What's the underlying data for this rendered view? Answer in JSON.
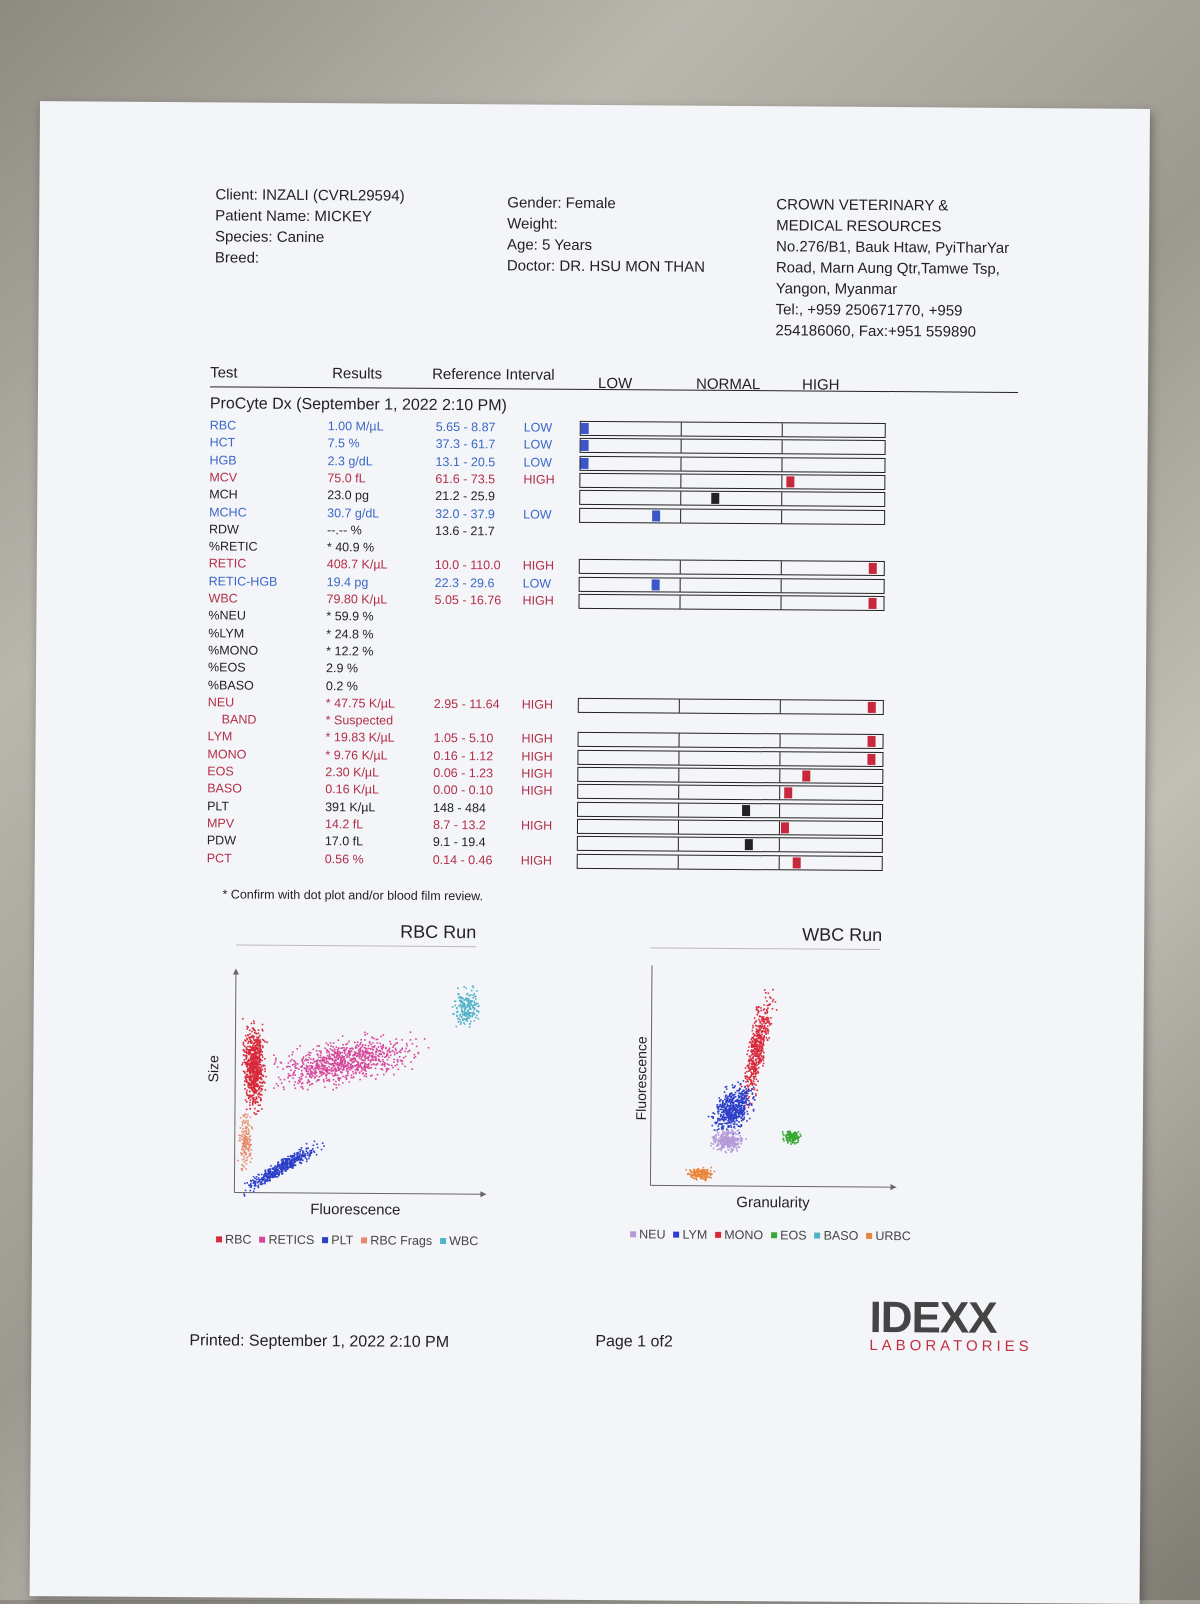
{
  "header": {
    "client": "Client: INZALI (CVRL29594)",
    "patient": "Patient Name: MICKEY",
    "species": "Species: Canine",
    "breed": "Breed:",
    "gender": "Gender: Female",
    "weight": "Weight:",
    "age": "Age: 5 Years",
    "doctor": "Doctor: DR. HSU MON THAN",
    "clinic_lines": [
      "CROWN VETERINARY &",
      "MEDICAL RESOURCES",
      "No.276/B1, Bauk Htaw, PyiTharYar",
      "Road, Marn Aung Qtr,Tamwe Tsp,",
      "Yangon, Myanmar",
      "Tel:, +959 250671770, +959",
      "254186060, Fax:+951 559890"
    ]
  },
  "columns": {
    "test": "Test",
    "results": "Results",
    "ref": "Reference Interval",
    "low": "LOW",
    "normal": "NORMAL",
    "high": "HIGH"
  },
  "section_title": "ProCyte Dx (September 1, 2022 2:10 PM)",
  "colors": {
    "low": "#3a56c8",
    "high": "#c8283c",
    "normal": "#222222"
  },
  "rows": [
    {
      "name": "RBC",
      "value": "1.00 M/µL",
      "ref": "5.65 - 8.87",
      "flag": "LOW",
      "color": "blue",
      "bar": "low",
      "pos": 0.0
    },
    {
      "name": "HCT",
      "value": "7.5 %",
      "ref": "37.3 - 61.7",
      "flag": "LOW",
      "color": "blue",
      "bar": "low",
      "pos": 0.0
    },
    {
      "name": "HGB",
      "value": "2.3 g/dL",
      "ref": "13.1 - 20.5",
      "flag": "LOW",
      "color": "blue",
      "bar": "low",
      "pos": 0.0
    },
    {
      "name": "MCV",
      "value": "75.0 fL",
      "ref": "61.6 - 73.5",
      "flag": "HIGH",
      "color": "red",
      "bar": "high",
      "pos": 0.69
    },
    {
      "name": "MCH",
      "value": "23.0 pg",
      "ref": "21.2 - 25.9",
      "flag": "",
      "color": "black",
      "bar": "normal",
      "pos": 0.44
    },
    {
      "name": "MCHC",
      "value": "30.7 g/dL",
      "ref": "32.0 - 37.9",
      "flag": "LOW",
      "color": "blue",
      "bar": "low",
      "pos": 0.24
    },
    {
      "name": "RDW",
      "value": "--.-- %",
      "ref": "13.6 - 21.7",
      "flag": "",
      "color": "black",
      "bar": null
    },
    {
      "name": "%RETIC",
      "value": "* 40.9 %",
      "ref": "",
      "flag": "",
      "color": "black",
      "bar": null
    },
    {
      "name": "RETIC",
      "value": "408.7 K/µL",
      "ref": "10.0 - 110.0",
      "flag": "HIGH",
      "color": "red",
      "bar": "high",
      "pos": 0.97
    },
    {
      "name": "RETIC-HGB",
      "value": "19.4 pg",
      "ref": "22.3 - 29.6",
      "flag": "LOW",
      "color": "blue",
      "bar": "low",
      "pos": 0.24
    },
    {
      "name": "WBC",
      "value": "79.80 K/µL",
      "ref": "5.05 - 16.76",
      "flag": "HIGH",
      "color": "red",
      "bar": "high",
      "pos": 0.97
    },
    {
      "name": "%NEU",
      "value": "* 59.9 %",
      "ref": "",
      "flag": "",
      "color": "black",
      "bar": null
    },
    {
      "name": "%LYM",
      "value": "* 24.8 %",
      "ref": "",
      "flag": "",
      "color": "black",
      "bar": null
    },
    {
      "name": "%MONO",
      "value": "* 12.2 %",
      "ref": "",
      "flag": "",
      "color": "black",
      "bar": null
    },
    {
      "name": "%EOS",
      "value": "2.9 %",
      "ref": "",
      "flag": "",
      "color": "black",
      "bar": null
    },
    {
      "name": "%BASO",
      "value": "0.2 %",
      "ref": "",
      "flag": "",
      "color": "black",
      "bar": null
    },
    {
      "name": "NEU",
      "value": "* 47.75 K/µL",
      "ref": "2.95 - 11.64",
      "flag": "HIGH",
      "color": "red",
      "bar": "high",
      "pos": 0.97
    },
    {
      "name": "BAND",
      "value": "* Suspected",
      "ref": "",
      "flag": "",
      "color": "red",
      "bar": null,
      "indent": true
    },
    {
      "name": "LYM",
      "value": "* 19.83 K/µL",
      "ref": "1.05 - 5.10",
      "flag": "HIGH",
      "color": "red",
      "bar": "high",
      "pos": 0.97
    },
    {
      "name": "MONO",
      "value": "* 9.76 K/µL",
      "ref": "0.16 - 1.12",
      "flag": "HIGH",
      "color": "red",
      "bar": "high",
      "pos": 0.97
    },
    {
      "name": "EOS",
      "value": "2.30 K/µL",
      "ref": "0.06 - 1.23",
      "flag": "HIGH",
      "color": "red",
      "bar": "high",
      "pos": 0.75
    },
    {
      "name": "BASO",
      "value": "0.16 K/µL",
      "ref": "0.00 - 0.10",
      "flag": "HIGH",
      "color": "red",
      "bar": "high",
      "pos": 0.69
    },
    {
      "name": "PLT",
      "value": "391 K/µL",
      "ref": "148 - 484",
      "flag": "",
      "color": "black",
      "bar": "normal",
      "pos": 0.55
    },
    {
      "name": "MPV",
      "value": "14.2 fL",
      "ref": "8.7 - 13.2",
      "flag": "HIGH",
      "color": "red",
      "bar": "high",
      "pos": 0.68
    },
    {
      "name": "PDW",
      "value": "17.0 fL",
      "ref": "9.1 - 19.4",
      "flag": "",
      "color": "black",
      "bar": "normal",
      "pos": 0.56
    },
    {
      "name": "PCT",
      "value": "0.56 %",
      "ref": "0.14 - 0.46",
      "flag": "HIGH",
      "color": "red",
      "bar": "high",
      "pos": 0.72
    }
  ],
  "note": "* Confirm with dot plot and/or blood film review.",
  "rbc_plot": {
    "title": "RBC Run",
    "xlabel": "Fluorescence",
    "ylabel": "Size",
    "legend": [
      {
        "label": "RBC",
        "color": "#d8283a"
      },
      {
        "label": "RETICS",
        "color": "#d6479a"
      },
      {
        "label": "PLT",
        "color": "#2c3fc8"
      },
      {
        "label": "RBC Frags",
        "color": "#e58a6a"
      },
      {
        "label": "WBC",
        "color": "#4fb3c8"
      }
    ]
  },
  "wbc_plot": {
    "title": "WBC Run",
    "xlabel": "Granularity",
    "ylabel": "Fluorescence",
    "legend": [
      {
        "label": "NEU",
        "color": "#b59ad8"
      },
      {
        "label": "LYM",
        "color": "#2c3fc8"
      },
      {
        "label": "MONO",
        "color": "#d8283a"
      },
      {
        "label": "EOS",
        "color": "#38a832"
      },
      {
        "label": "BASO",
        "color": "#4fb3c8"
      },
      {
        "label": "URBC",
        "color": "#e8843a"
      }
    ]
  },
  "footer": {
    "printed": "Printed: September 1, 2022 2:10 PM",
    "page": "Page 1 of2",
    "logo_top": "IDEXX",
    "logo_bottom": "LABORATORIES"
  }
}
